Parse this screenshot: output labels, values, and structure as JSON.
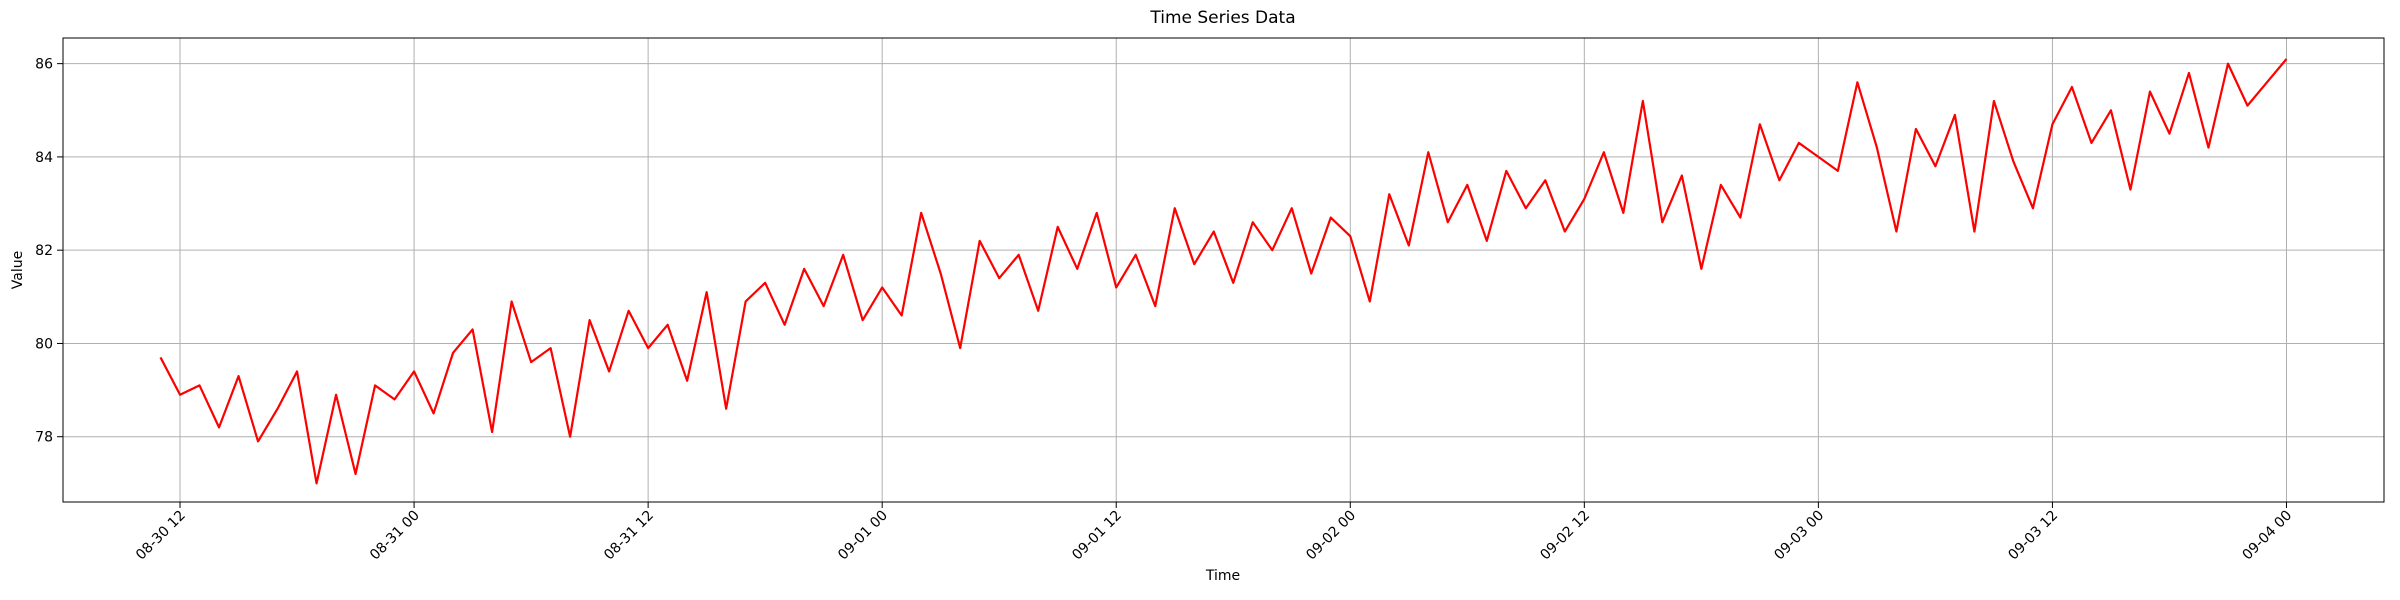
{
  "chart_data": {
    "type": "line",
    "title": "Time Series Data",
    "x_label": "Time",
    "y_label": "Value",
    "color": "#ff0000",
    "grid": true,
    "x": [
      "08-30 11",
      "08-30 12",
      "08-30 13",
      "08-30 14",
      "08-30 15",
      "08-30 16",
      "08-30 17",
      "08-30 18",
      "08-30 19",
      "08-30 20",
      "08-30 21",
      "08-30 22",
      "08-30 23",
      "08-31 00",
      "08-31 01",
      "08-31 02",
      "08-31 03",
      "08-31 04",
      "08-31 05",
      "08-31 06",
      "08-31 07",
      "08-31 08",
      "08-31 09",
      "08-31 10",
      "08-31 11",
      "08-31 12",
      "08-31 13",
      "08-31 14",
      "08-31 15",
      "08-31 16",
      "08-31 17",
      "08-31 18",
      "08-31 19",
      "08-31 20",
      "08-31 21",
      "08-31 22",
      "08-31 23",
      "09-01 00",
      "09-01 01",
      "09-01 02",
      "09-01 03",
      "09-01 04",
      "09-01 05",
      "09-01 06",
      "09-01 07",
      "09-01 08",
      "09-01 09",
      "09-01 10",
      "09-01 11",
      "09-01 12",
      "09-01 13",
      "09-01 14",
      "09-01 15",
      "09-01 16",
      "09-01 17",
      "09-01 18",
      "09-01 19",
      "09-01 20",
      "09-01 21",
      "09-01 22",
      "09-01 23",
      "09-02 00",
      "09-02 01",
      "09-02 02",
      "09-02 03",
      "09-02 04",
      "09-02 05",
      "09-02 06",
      "09-02 07",
      "09-02 08",
      "09-02 09",
      "09-02 10",
      "09-02 11",
      "09-02 12",
      "09-02 13",
      "09-02 14",
      "09-02 15",
      "09-02 16",
      "09-02 17",
      "09-02 18",
      "09-02 19",
      "09-02 20",
      "09-02 21",
      "09-02 22",
      "09-02 23",
      "09-03 00",
      "09-03 01",
      "09-03 02",
      "09-03 03",
      "09-03 04",
      "09-03 05",
      "09-03 06",
      "09-03 07",
      "09-03 08",
      "09-03 09",
      "09-03 10",
      "09-03 11",
      "09-03 12",
      "09-03 13",
      "09-03 14",
      "09-03 15",
      "09-03 16",
      "09-03 17",
      "09-03 18",
      "09-03 19",
      "09-03 20",
      "09-03 21",
      "09-03 22",
      "09-03 23",
      "09-04 00"
    ],
    "values": [
      79.7,
      78.9,
      79.1,
      78.2,
      79.3,
      77.9,
      78.6,
      79.4,
      77.0,
      78.9,
      77.2,
      79.1,
      78.8,
      79.4,
      78.5,
      79.8,
      80.3,
      78.1,
      80.9,
      79.6,
      79.9,
      78.0,
      80.5,
      79.4,
      80.7,
      79.9,
      80.4,
      79.2,
      81.1,
      78.6,
      80.9,
      81.3,
      80.4,
      81.6,
      80.8,
      81.9,
      80.5,
      81.2,
      80.6,
      82.8,
      81.5,
      79.9,
      82.2,
      81.4,
      81.9,
      80.7,
      82.5,
      81.6,
      82.8,
      81.2,
      81.9,
      80.8,
      82.9,
      81.7,
      82.4,
      81.3,
      82.6,
      82.0,
      82.9,
      81.5,
      82.7,
      82.3,
      80.9,
      83.2,
      82.1,
      84.1,
      82.6,
      83.4,
      82.2,
      83.7,
      82.9,
      83.5,
      82.4,
      83.1,
      84.1,
      82.8,
      85.2,
      82.6,
      83.6,
      81.6,
      83.4,
      82.7,
      84.7,
      83.5,
      84.3,
      84.0,
      83.7,
      85.6,
      84.2,
      82.4,
      84.6,
      83.8,
      84.9,
      82.4,
      85.2,
      83.9,
      82.9,
      84.7,
      85.5,
      84.3,
      85.0,
      83.3,
      85.4,
      84.5,
      85.8,
      84.2,
      86.0,
      85.1,
      85.6,
      86.1
    ],
    "xlim": [
      "08-30 06",
      "09-04 05"
    ],
    "xticks": [
      "08-30 12",
      "08-31 00",
      "08-31 12",
      "09-01 00",
      "09-01 12",
      "09-02 00",
      "09-02 12",
      "09-03 00",
      "09-03 12",
      "09-04 00"
    ],
    "ylim": [
      76.6,
      86.55
    ],
    "yticks": [
      78,
      80,
      82,
      84,
      86
    ]
  }
}
